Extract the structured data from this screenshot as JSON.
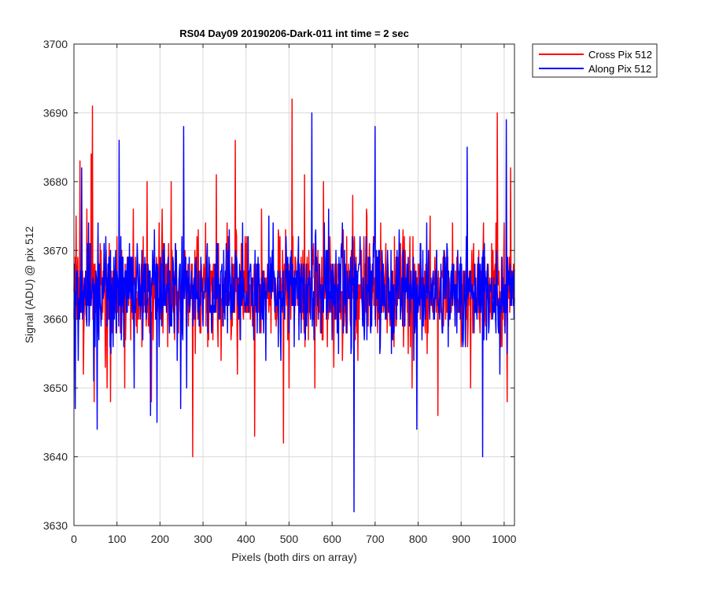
{
  "chart_data": {
    "type": "line",
    "title": "RS04 Day09 20190206-Dark-011 int time = 2 sec",
    "xlabel": "Pixels (both dirs on array)",
    "ylabel": "Signal (ADU) @ pix 512",
    "xlim": [
      0,
      1024
    ],
    "ylim": [
      3630,
      3700
    ],
    "xticks": [
      0,
      100,
      200,
      300,
      400,
      500,
      600,
      700,
      800,
      900,
      1000
    ],
    "yticks": [
      3630,
      3640,
      3650,
      3660,
      3670,
      3680,
      3690,
      3700
    ],
    "grid": true,
    "legend_position": "outside-top-right",
    "series": [
      {
        "name": "Cross Pix 512",
        "color": "#ff0000",
        "anchors": [
          [
            0,
            3664
          ],
          [
            5,
            3675
          ],
          [
            14,
            3683
          ],
          [
            22,
            3652
          ],
          [
            30,
            3676
          ],
          [
            40,
            3684
          ],
          [
            43,
            3691
          ],
          [
            47,
            3648
          ],
          [
            56,
            3672
          ],
          [
            77,
            3650
          ],
          [
            85,
            3648
          ],
          [
            100,
            3672
          ],
          [
            118,
            3650
          ],
          [
            138,
            3676
          ],
          [
            150,
            3660
          ],
          [
            158,
            3656
          ],
          [
            170,
            3680
          ],
          [
            180,
            3648
          ],
          [
            198,
            3674
          ],
          [
            205,
            3676
          ],
          [
            226,
            3680
          ],
          [
            238,
            3662
          ],
          [
            256,
            3664
          ],
          [
            276,
            3640
          ],
          [
            282,
            3655
          ],
          [
            306,
            3674
          ],
          [
            331,
            3681
          ],
          [
            342,
            3654
          ],
          [
            372,
            3668
          ],
          [
            375,
            3686
          ],
          [
            380,
            3652
          ],
          [
            420,
            3643
          ],
          [
            436,
            3676
          ],
          [
            456,
            3662
          ],
          [
            476,
            3672
          ],
          [
            487,
            3642
          ],
          [
            500,
            3650
          ],
          [
            507,
            3692
          ],
          [
            512,
            3660
          ],
          [
            536,
            3681
          ],
          [
            560,
            3650
          ],
          [
            580,
            3680
          ],
          [
            610,
            3661
          ],
          [
            624,
            3654
          ],
          [
            648,
            3678
          ],
          [
            660,
            3654
          ],
          [
            680,
            3676
          ],
          [
            700,
            3660
          ],
          [
            724,
            3668
          ],
          [
            744,
            3656
          ],
          [
            768,
            3672
          ],
          [
            786,
            3650
          ],
          [
            800,
            3668
          ],
          [
            828,
            3675
          ],
          [
            846,
            3646
          ],
          [
            860,
            3662
          ],
          [
            880,
            3674
          ],
          [
            900,
            3656
          ],
          [
            922,
            3650
          ],
          [
            952,
            3674
          ],
          [
            970,
            3660
          ],
          [
            981,
            3674
          ],
          [
            984,
            3690
          ],
          [
            992,
            3656
          ],
          [
            1000,
            3674
          ],
          [
            1007,
            3648
          ],
          [
            1015,
            3682
          ],
          [
            1023,
            3668
          ]
        ]
      },
      {
        "name": "Along Pix 512",
        "color": "#0000ff",
        "anchors": [
          [
            0,
            3660
          ],
          [
            3,
            3647
          ],
          [
            10,
            3654
          ],
          [
            18,
            3682
          ],
          [
            34,
            3674
          ],
          [
            40,
            3662
          ],
          [
            46,
            3651
          ],
          [
            54,
            3644
          ],
          [
            60,
            3668
          ],
          [
            74,
            3672
          ],
          [
            98,
            3658
          ],
          [
            105,
            3686
          ],
          [
            120,
            3664
          ],
          [
            140,
            3650
          ],
          [
            158,
            3670
          ],
          [
            178,
            3646
          ],
          [
            193,
            3645
          ],
          [
            208,
            3670
          ],
          [
            240,
            3654
          ],
          [
            248,
            3647
          ],
          [
            255,
            3688
          ],
          [
            262,
            3650
          ],
          [
            290,
            3666
          ],
          [
            308,
            3668
          ],
          [
            340,
            3660
          ],
          [
            348,
            3670
          ],
          [
            366,
            3664
          ],
          [
            376,
            3670
          ],
          [
            392,
            3674
          ],
          [
            402,
            3662
          ],
          [
            430,
            3668
          ],
          [
            446,
            3654
          ],
          [
            462,
            3664
          ],
          [
            480,
            3658
          ],
          [
            500,
            3658
          ],
          [
            514,
            3662
          ],
          [
            540,
            3668
          ],
          [
            553,
            3690
          ],
          [
            566,
            3662
          ],
          [
            582,
            3674
          ],
          [
            597,
            3668
          ],
          [
            612,
            3658
          ],
          [
            632,
            3662
          ],
          [
            651,
            3632
          ],
          [
            665,
            3672
          ],
          [
            700,
            3688
          ],
          [
            712,
            3656
          ],
          [
            734,
            3664
          ],
          [
            744,
            3658
          ],
          [
            760,
            3662
          ],
          [
            790,
            3654
          ],
          [
            797,
            3644
          ],
          [
            820,
            3674
          ],
          [
            838,
            3660
          ],
          [
            868,
            3670
          ],
          [
            900,
            3662
          ],
          [
            914,
            3685
          ],
          [
            930,
            3658
          ],
          [
            950,
            3640
          ],
          [
            968,
            3664
          ],
          [
            990,
            3652
          ],
          [
            1005,
            3689
          ],
          [
            1012,
            3666
          ],
          [
            1023,
            3660
          ]
        ]
      }
    ]
  }
}
